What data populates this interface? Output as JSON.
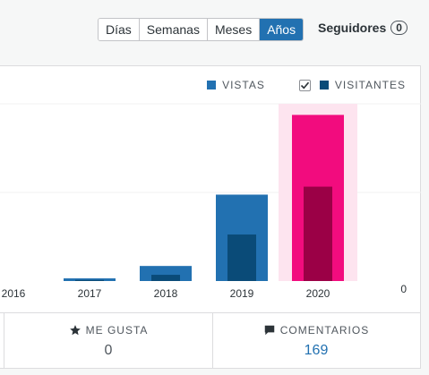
{
  "period_tabs": [
    "Días",
    "Semanas",
    "Meses",
    "Años"
  ],
  "active_period": "Años",
  "followers": {
    "label": "Seguidores",
    "count": "0"
  },
  "legend": {
    "views": {
      "label": "VISTAS",
      "color": "#2271b1"
    },
    "visitors": {
      "label": "VISITANTES",
      "color": "#0a4b78",
      "checked": true
    }
  },
  "chart_data": {
    "type": "bar",
    "categories": [
      "2016",
      "2017",
      "2018",
      "2019",
      "2020"
    ],
    "series": [
      {
        "name": "VISTAS",
        "values": [
          0,
          60,
          340,
          1950,
          3750
        ]
      },
      {
        "name": "VISITANTES",
        "values": [
          0,
          25,
          140,
          1050,
          2130
        ]
      }
    ],
    "highlighted_category": "2020",
    "highlight_colors": {
      "views": "#f20c7e",
      "visitors": "#9b0046",
      "band": "#fde4ef"
    },
    "y_tick_labels": [
      "0"
    ],
    "ylim": [
      0,
      4000
    ],
    "grid": true
  },
  "stats": {
    "likes": {
      "label": "ME GUSTA",
      "value": "0"
    },
    "comments": {
      "label": "COMENTARIOS",
      "value": "169"
    }
  }
}
